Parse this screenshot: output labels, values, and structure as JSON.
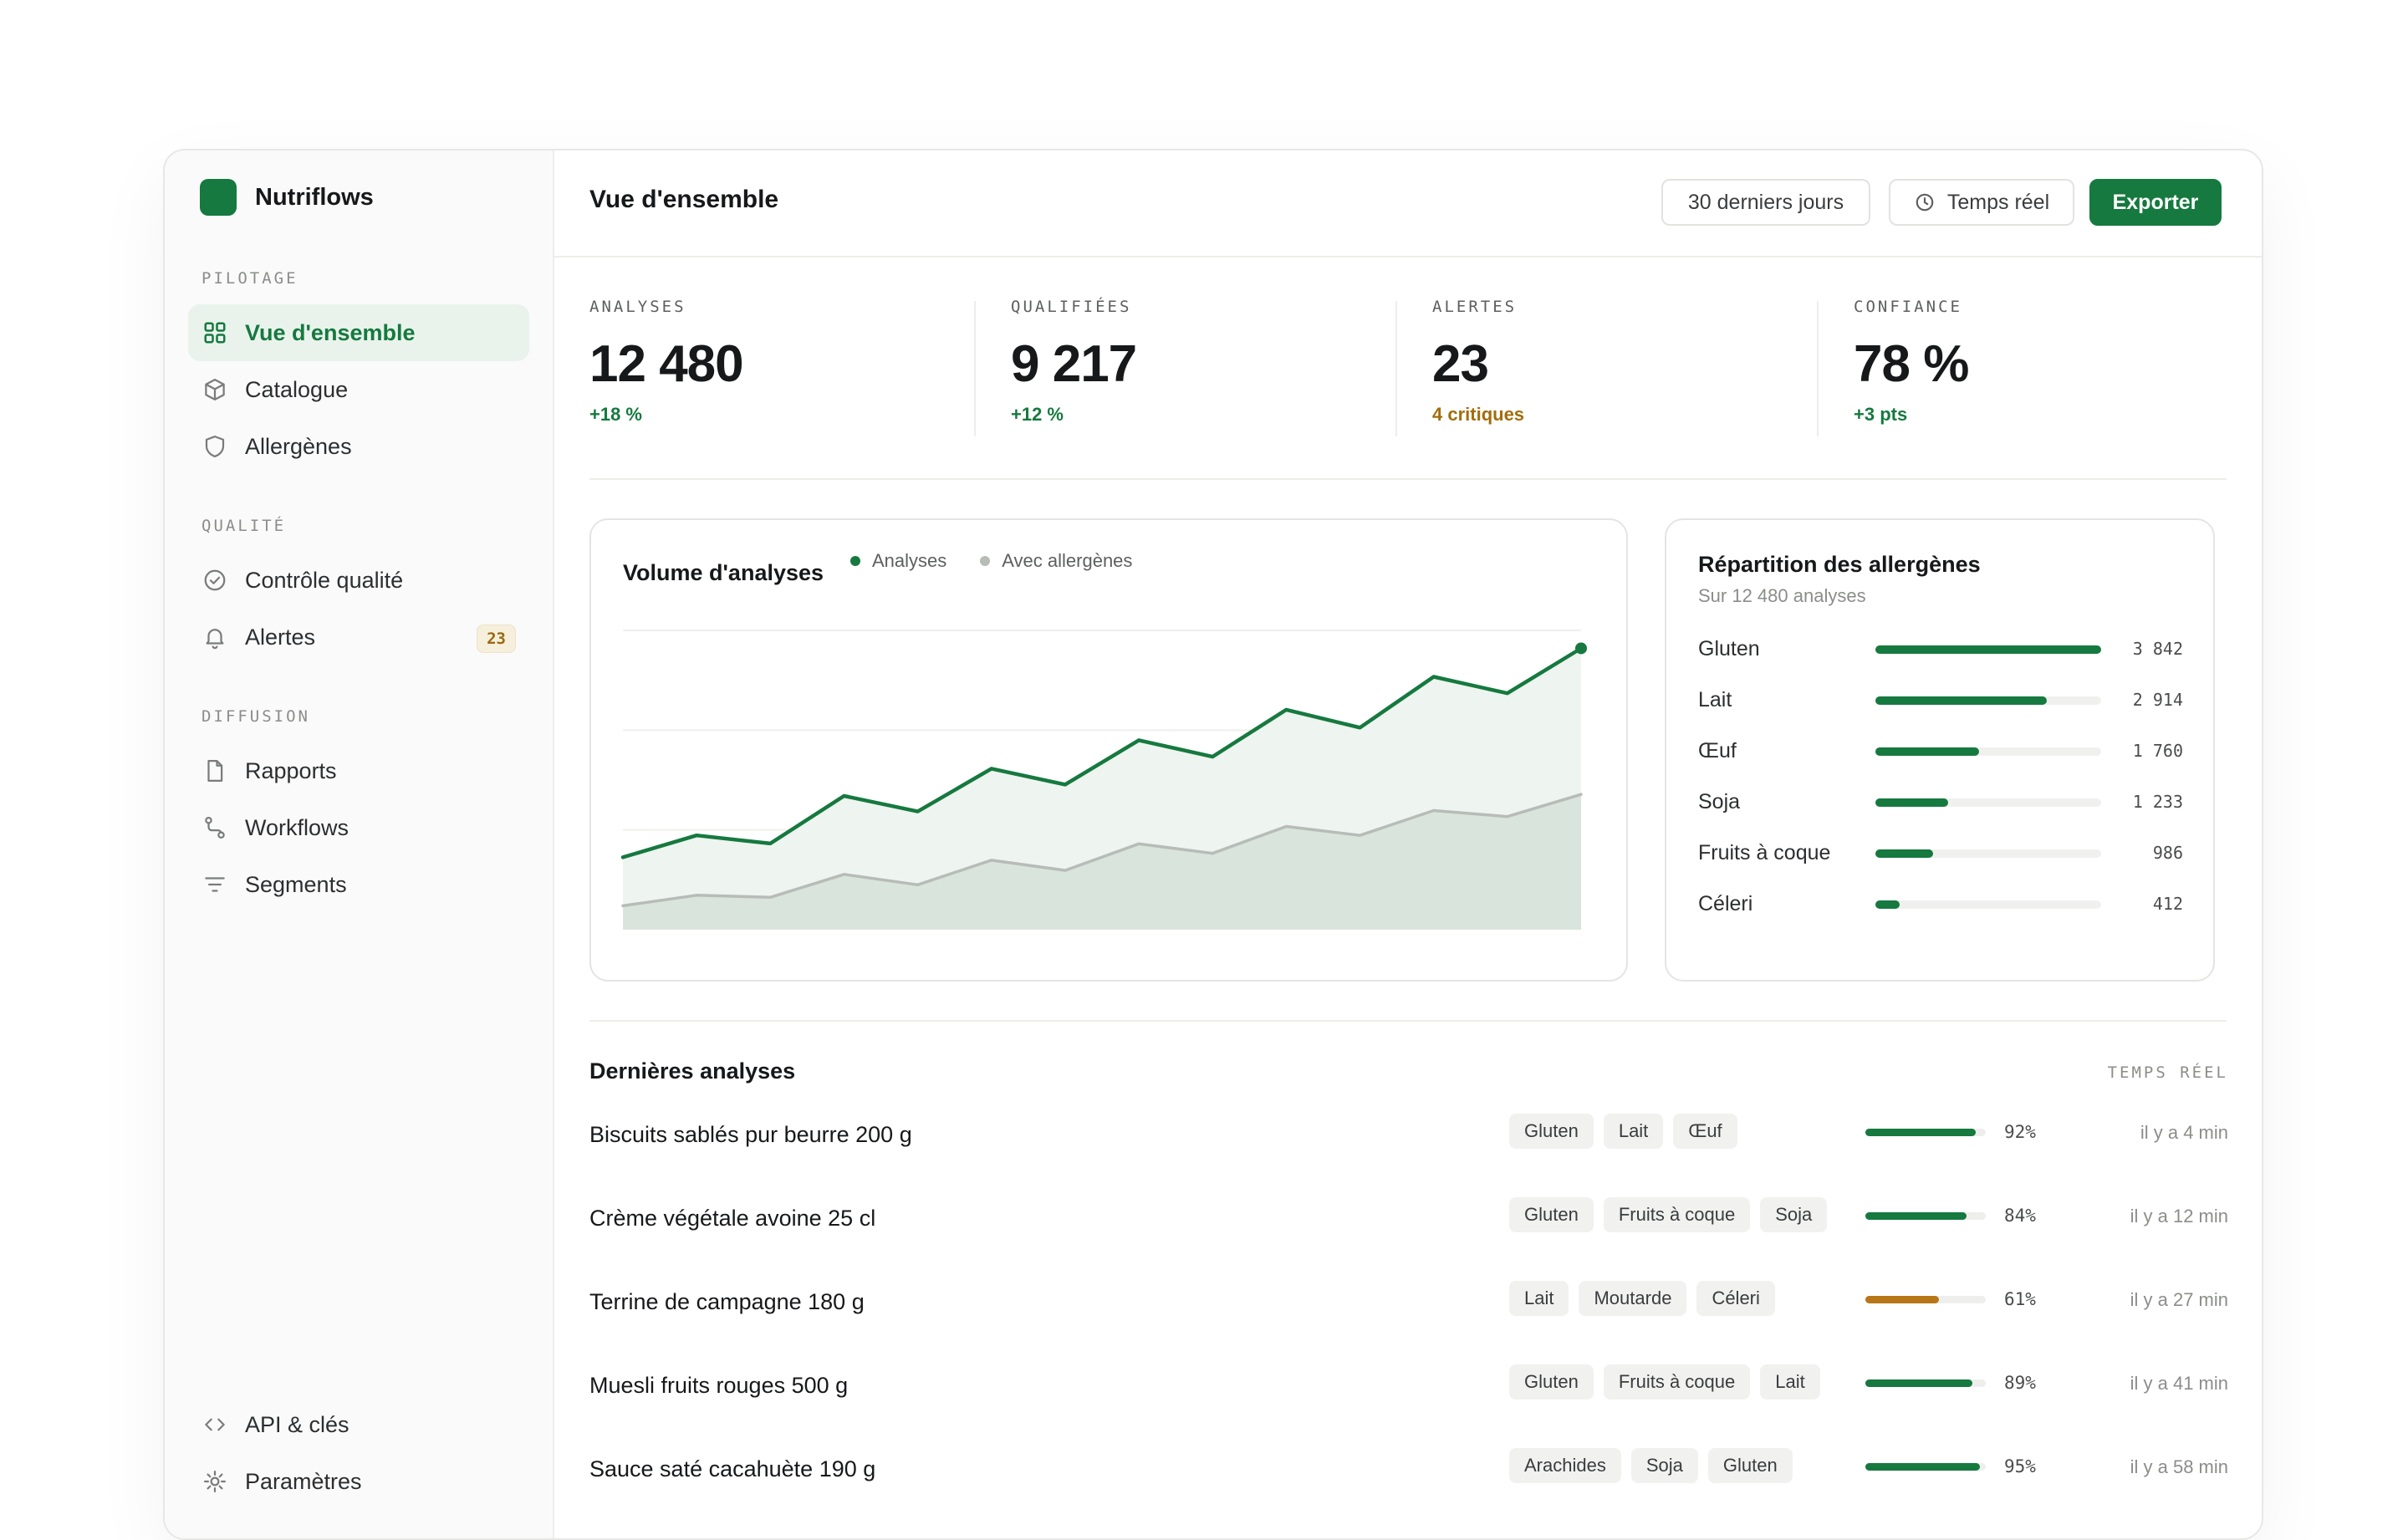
{
  "brand": {
    "name": "Nutriflows"
  },
  "sidebar": {
    "sections": [
      {
        "label": "PILOTAGE",
        "items": [
          {
            "label": "Vue d'ensemble",
            "icon": "grid-icon",
            "active": true
          },
          {
            "label": "Catalogue",
            "icon": "box-icon"
          },
          {
            "label": "Allergènes",
            "icon": "shield-icon"
          }
        ]
      },
      {
        "label": "QUALITÉ",
        "items": [
          {
            "label": "Contrôle qualité",
            "icon": "check-circle-icon"
          },
          {
            "label": "Alertes",
            "icon": "bell-icon",
            "badge": "23"
          }
        ]
      },
      {
        "label": "DIFFUSION",
        "items": [
          {
            "label": "Rapports",
            "icon": "file-icon"
          },
          {
            "label": "Workflows",
            "icon": "workflow-icon"
          },
          {
            "label": "Segments",
            "icon": "filter-icon"
          }
        ]
      }
    ],
    "footer": [
      {
        "label": "API & clés",
        "icon": "code-icon"
      },
      {
        "label": "Paramètres",
        "icon": "gear-icon"
      }
    ]
  },
  "header": {
    "title": "Vue d'ensemble",
    "period_label": "30 derniers jours",
    "realtime_label": "Temps réel",
    "export_label": "Exporter"
  },
  "kpis": [
    {
      "label": "ANALYSES",
      "value": "12 480",
      "delta": "+18 %"
    },
    {
      "label": "QUALIFIÉES",
      "value": "9 217",
      "delta": "+12 %"
    },
    {
      "label": "ALERTES",
      "value": "23",
      "delta": "4 critiques"
    },
    {
      "label": "CONFIANCE",
      "value": "78 %",
      "delta": "+3 pts"
    }
  ],
  "volume_chart": {
    "title": "Volume d'analyses",
    "legend": [
      "Analyses",
      "Avec allergènes"
    ]
  },
  "allergens": {
    "title": "Répartition des allergènes",
    "subtitle": "Sur 12 480 analyses",
    "items": [
      {
        "name": "Gluten",
        "count": "3 842",
        "value": 3842
      },
      {
        "name": "Lait",
        "count": "2 914",
        "value": 2914
      },
      {
        "name": "Œuf",
        "count": "1 760",
        "value": 1760
      },
      {
        "name": "Soja",
        "count": "1 233",
        "value": 1233
      },
      {
        "name": "Fruits à coque",
        "count": "986",
        "value": 986
      },
      {
        "name": "Céleri",
        "count": "412",
        "value": 412
      }
    ]
  },
  "recent": {
    "title": "Dernières analyses",
    "tag": "TEMPS RÉEL",
    "rows": [
      {
        "name": "Biscuits sablés pur beurre 200 g",
        "tags": [
          "Gluten",
          "Lait",
          "Œuf"
        ],
        "confidence": 92,
        "pct": "92%",
        "time": "il y a 4 min"
      },
      {
        "name": "Crème végétale avoine 25 cl",
        "tags": [
          "Gluten",
          "Fruits à coque",
          "Soja"
        ],
        "confidence": 84,
        "pct": "84%",
        "time": "il y a 12 min"
      },
      {
        "name": "Terrine de campagne 180 g",
        "tags": [
          "Lait",
          "Moutarde",
          "Céleri"
        ],
        "confidence": 61,
        "pct": "61%",
        "time": "il y a 27 min"
      },
      {
        "name": "Muesli fruits rouges 500 g",
        "tags": [
          "Gluten",
          "Fruits à coque",
          "Lait"
        ],
        "confidence": 89,
        "pct": "89%",
        "time": "il y a 41 min"
      },
      {
        "name": "Sauce saté cacahuète 190 g",
        "tags": [
          "Arachides",
          "Soja",
          "Gluten"
        ],
        "confidence": 95,
        "pct": "95%",
        "time": "il y a 58 min"
      }
    ]
  },
  "colors": {
    "accent": "#16793f",
    "warn": "#a26d0c",
    "muted_series": "#b8bcb8"
  },
  "chart_data": {
    "type": "area",
    "x": [
      1,
      2,
      3,
      4,
      5,
      6,
      7,
      8,
      9,
      10,
      11,
      12,
      13,
      14
    ],
    "series": [
      {
        "name": "Analyses",
        "values": [
          242,
          315,
          288,
          447,
          395,
          538,
          485,
          633,
          578,
          735,
          675,
          845,
          790,
          940
        ]
      },
      {
        "name": "Avec allergènes",
        "values": [
          80,
          115,
          108,
          185,
          150,
          232,
          198,
          287,
          255,
          345,
          315,
          398,
          378,
          452
        ]
      }
    ],
    "ylim": [
      0,
      1000
    ],
    "grid": true,
    "legend_position": "top"
  }
}
